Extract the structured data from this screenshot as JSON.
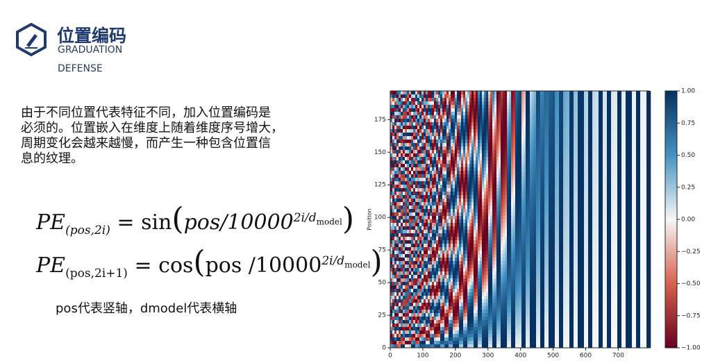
{
  "header": {
    "title": "位置编码",
    "subtitle_1": "GRADUATION",
    "subtitle_2": "DEFENSE"
  },
  "body": {
    "lines": [
      "由于不同位置代表特征不同，加入位置编码是",
      "必须的。位置嵌入在维度上随着维度序号增大，",
      "周期变化会越来越慢，而产生一种包含位置信",
      "息的纹理。"
    ]
  },
  "formulas": [
    {
      "lhs": "PE",
      "lhs_sub": "(pos,2i)",
      "fn": "= sin",
      "arg": "pos/10000",
      "exp": "2i/d",
      "exp_sub": "model"
    },
    {
      "lhs": "PE",
      "lhs_sub": "(pos,2i+1)",
      "fn": "= cos",
      "arg": "pos /10000",
      "exp": "2i/d",
      "exp_sub": "model"
    }
  ],
  "note": "pos代表竖轴，dmodel代表横轴",
  "chart_data": {
    "type": "heatmap",
    "ylabel": "Position",
    "xlim": [
      0,
      795
    ],
    "xticks": [
      0,
      100,
      200,
      300,
      400,
      500,
      600,
      700
    ],
    "ylim": [
      0,
      197
    ],
    "yticks": [
      0,
      25,
      50,
      75,
      100,
      125,
      150,
      175
    ],
    "clim": [
      -1,
      1
    ],
    "cticks": [
      {
        "value": -1,
        "label": "−1.00"
      },
      {
        "value": -0.75,
        "label": "−0.75"
      },
      {
        "value": -0.5,
        "label": "−0.50"
      },
      {
        "value": -0.25,
        "label": "−0.25"
      },
      {
        "value": 0,
        "label": "0.00"
      },
      {
        "value": 0.25,
        "label": "0.25"
      },
      {
        "value": 0.5,
        "label": "0.50"
      },
      {
        "value": 0.75,
        "label": "0.75"
      },
      {
        "value": 1,
        "label": "1.00"
      }
    ]
  }
}
